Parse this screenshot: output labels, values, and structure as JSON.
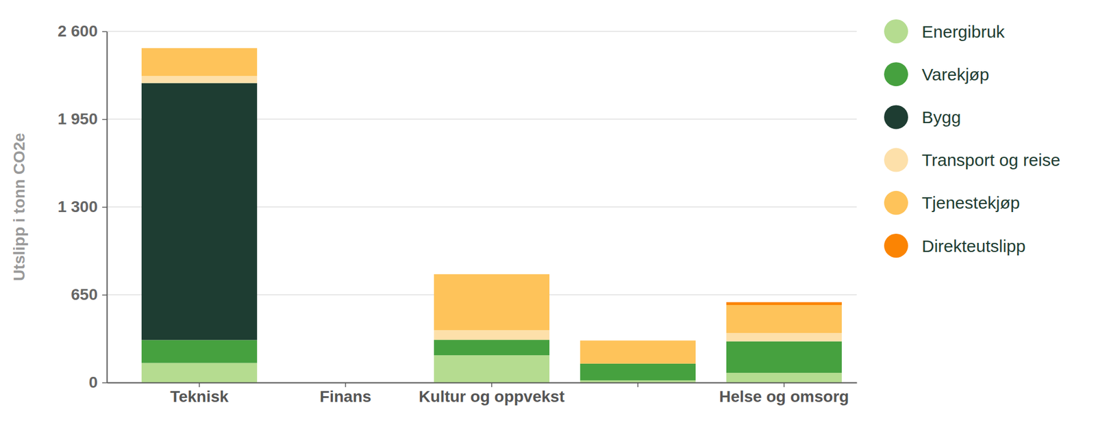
{
  "chart_data": {
    "type": "bar",
    "stacked": true,
    "grid": true,
    "legend": "right",
    "y_label": "Utslipp i tonn CO2e",
    "categories": [
      "Teknisk",
      "Finans",
      "Kultur og oppvekst",
      null,
      "Helse og omsorg"
    ],
    "ylim": [
      0,
      2600
    ],
    "yticks": [
      0,
      650,
      {
        "value": 1300,
        "label": "1 300"
      },
      {
        "value": 1950,
        "label": "1 950"
      },
      {
        "value": 2600,
        "label": "2 600"
      }
    ],
    "series": [
      {
        "name": "Energibruk",
        "color": "#b5dc90",
        "values": [
          145,
          0,
          202,
          16,
          72
        ]
      },
      {
        "name": "Varekjøp",
        "color": "#46a13f",
        "values": [
          170,
          0,
          114,
          124,
          233
        ]
      },
      {
        "name": "Bygg",
        "color": "#1e3d32",
        "values": [
          1902,
          0,
          0,
          0,
          0
        ]
      },
      {
        "name": "Transport og reise",
        "color": "#fde0aa",
        "values": [
          52,
          0,
          72,
          0,
          62
        ]
      },
      {
        "name": "Tjenestekjøp",
        "color": "#fec35a",
        "values": [
          207,
          0,
          414,
          171,
          207
        ]
      },
      {
        "name": "Direkteutslipp",
        "color": "#fb8403",
        "values": [
          0,
          0,
          0,
          0,
          21
        ]
      }
    ]
  }
}
